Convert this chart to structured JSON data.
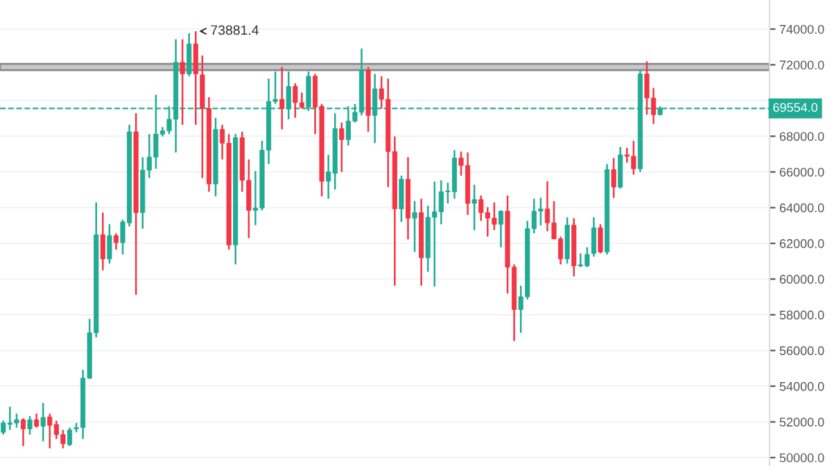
{
  "chart_data": {
    "type": "candlestick",
    "categories": [
      null,
      null,
      null,
      null,
      null,
      null,
      null,
      null,
      null,
      null,
      null,
      null,
      null,
      null,
      null,
      null,
      null,
      null,
      null,
      null,
      null,
      null,
      null,
      null,
      null,
      null,
      null,
      null,
      null,
      null,
      null,
      null,
      null,
      null,
      null,
      null,
      null,
      null,
      null,
      null,
      null,
      null,
      null,
      null,
      null,
      null,
      null,
      null,
      null,
      null,
      null,
      null,
      null,
      null,
      null,
      null,
      null,
      null,
      null,
      null,
      null,
      null,
      null,
      null,
      null,
      null,
      null,
      null,
      null,
      null,
      null,
      null,
      null,
      null,
      null,
      null,
      null,
      null,
      null,
      null,
      null,
      null,
      null,
      null,
      null,
      null,
      null,
      null,
      null,
      null,
      null,
      null,
      null,
      null,
      null,
      null,
      null,
      null,
      null,
      null,
      null,
      null,
      null,
      null,
      null,
      null,
      null,
      null,
      null,
      null,
      null,
      null,
      null,
      null,
      null,
      null
    ],
    "ohlc": [
      [
        51420,
        52070,
        51290,
        51940
      ],
      [
        51860,
        52850,
        51550,
        51940
      ],
      [
        51940,
        52460,
        51680,
        52120
      ],
      [
        52120,
        52200,
        50650,
        51610
      ],
      [
        51610,
        52330,
        51290,
        52120
      ],
      [
        52120,
        52460,
        51680,
        51760
      ],
      [
        51760,
        53060,
        50910,
        52250
      ],
      [
        52280,
        52460,
        50520,
        51810
      ],
      [
        51860,
        52070,
        51040,
        51290
      ],
      [
        51290,
        51550,
        50520,
        50780
      ],
      [
        50730,
        51680,
        50650,
        51550
      ],
      [
        51610,
        51940,
        51420,
        51680
      ],
      [
        51680,
        54920,
        51040,
        54450
      ],
      [
        54450,
        57770,
        54400,
        56990
      ],
      [
        56990,
        64290,
        56730,
        62480
      ],
      [
        62480,
        63720,
        60490,
        61130
      ],
      [
        61130,
        63070,
        60870,
        62430
      ],
      [
        62430,
        62560,
        61650,
        62040
      ],
      [
        62040,
        63330,
        61380,
        63200
      ],
      [
        63150,
        68640,
        62950,
        68250
      ],
      [
        68250,
        69290,
        59110,
        63720
      ],
      [
        63720,
        66830,
        62820,
        66100
      ],
      [
        66100,
        68120,
        65660,
        66830
      ],
      [
        66830,
        70320,
        66180,
        68120
      ],
      [
        68120,
        68510,
        67990,
        68300
      ],
      [
        68300,
        69680,
        68120,
        68950
      ],
      [
        68950,
        73430,
        67090,
        72140
      ],
      [
        72140,
        73430,
        68640,
        71490
      ],
      [
        71490,
        73770,
        71360,
        73170
      ],
      [
        73170,
        73881.4,
        68640,
        71490
      ],
      [
        71440,
        72520,
        65660,
        69550
      ],
      [
        69550,
        70190,
        64890,
        65330
      ],
      [
        65330,
        69030,
        64630,
        68380
      ],
      [
        68380,
        68640,
        66700,
        67610
      ],
      [
        67610,
        68120,
        61650,
        61910
      ],
      [
        61910,
        68120,
        60820,
        67920
      ],
      [
        67920,
        68250,
        64890,
        65530
      ],
      [
        65530,
        66700,
        62300,
        63850
      ],
      [
        63850,
        66050,
        63020,
        63980
      ],
      [
        63980,
        67740,
        63850,
        67220
      ],
      [
        67220,
        71230,
        66440,
        69940
      ],
      [
        69940,
        71620,
        69810,
        70070
      ],
      [
        70070,
        71880,
        68380,
        69550
      ],
      [
        69550,
        71620,
        68950,
        70790
      ],
      [
        70790,
        70970,
        69030,
        69880
      ],
      [
        69880,
        70450,
        69550,
        69630
      ],
      [
        69630,
        71620,
        69420,
        71360
      ],
      [
        71360,
        71490,
        68120,
        69630
      ],
      [
        69680,
        69810,
        64630,
        65480
      ],
      [
        65480,
        66960,
        64500,
        66000
      ],
      [
        65920,
        69290,
        65020,
        68430
      ],
      [
        68430,
        68770,
        66000,
        67810
      ],
      [
        67810,
        69680,
        67480,
        68850
      ],
      [
        68850,
        69810,
        68770,
        69340
      ],
      [
        69340,
        72910,
        69160,
        71700
      ],
      [
        71700,
        71880,
        68250,
        69160
      ],
      [
        69160,
        71490,
        67610,
        70660
      ],
      [
        70660,
        71360,
        69550,
        70070
      ],
      [
        70070,
        71230,
        65150,
        67140
      ],
      [
        67140,
        67990,
        59630,
        63930
      ],
      [
        63930,
        65790,
        63200,
        65590
      ],
      [
        65590,
        66830,
        62220,
        63410
      ],
      [
        63410,
        64370,
        61520,
        63720
      ],
      [
        63720,
        64500,
        59630,
        61190
      ],
      [
        61190,
        64110,
        60410,
        63460
      ],
      [
        63460,
        65460,
        59580,
        63770
      ],
      [
        63770,
        65530,
        63070,
        64890
      ],
      [
        64890,
        65400,
        64240,
        64940
      ],
      [
        64890,
        67220,
        64500,
        66780
      ],
      [
        66780,
        67140,
        65790,
        66360
      ],
      [
        66360,
        67090,
        63590,
        64240
      ],
      [
        64240,
        65280,
        62740,
        64450
      ],
      [
        64450,
        64680,
        63260,
        63720
      ],
      [
        63720,
        64030,
        62380,
        63410
      ],
      [
        63410,
        64290,
        62740,
        63070
      ],
      [
        63070,
        63850,
        61780,
        63800
      ],
      [
        63800,
        64680,
        59190,
        60670
      ],
      [
        60670,
        60820,
        56530,
        58290
      ],
      [
        58290,
        59630,
        56990,
        59010
      ],
      [
        59010,
        63260,
        58860,
        62820
      ],
      [
        62820,
        64500,
        62560,
        63800
      ],
      [
        63800,
        64550,
        63000,
        63930
      ],
      [
        63930,
        65480,
        62680,
        63150
      ],
      [
        63150,
        64370,
        62220,
        62250
      ],
      [
        62250,
        62380,
        60820,
        61130
      ],
      [
        61130,
        63460,
        60870,
        63020
      ],
      [
        63020,
        63410,
        60150,
        60740
      ],
      [
        60740,
        61440,
        60670,
        60800
      ],
      [
        60740,
        61780,
        60670,
        61380
      ],
      [
        61440,
        63460,
        61260,
        62870
      ],
      [
        62870,
        63070,
        61440,
        61520
      ],
      [
        61520,
        66440,
        61380,
        66130
      ],
      [
        66130,
        66780,
        64550,
        65150
      ],
      [
        65150,
        67400,
        65070,
        66960
      ],
      [
        66960,
        67350,
        66520,
        66880
      ],
      [
        66880,
        67740,
        65850,
        66180
      ],
      [
        66180,
        71700,
        66000,
        71490
      ],
      [
        71490,
        72190,
        69210,
        70140
      ],
      [
        70140,
        70710,
        68690,
        69210
      ],
      [
        69210,
        69680,
        69160,
        69554
      ],
      null,
      null,
      null,
      null,
      null,
      null,
      null,
      null,
      null,
      null,
      null,
      null,
      null,
      null,
      null,
      null
    ],
    "colors": [
      "#22ab94",
      "#22ab94",
      "#22ab94",
      "#f23645",
      "#22ab94",
      "#f23645",
      "#22ab94",
      "#f23645",
      "#f23645",
      "#f23645",
      "#22ab94",
      "#22ab94",
      "#22ab94",
      "#22ab94",
      "#22ab94",
      "#f23645",
      "#22ab94",
      "#f23645",
      "#22ab94",
      "#22ab94",
      "#f23645",
      "#22ab94",
      "#22ab94",
      "#22ab94",
      "#22ab94",
      "#22ab94",
      "#22ab94",
      "#f23645",
      "#22ab94",
      "#f23645",
      "#f23645",
      "#f23645",
      "#22ab94",
      "#f23645",
      "#f23645",
      "#22ab94",
      "#f23645",
      "#f23645",
      "#22ab94",
      "#22ab94",
      "#22ab94",
      "#22ab94",
      "#f23645",
      "#22ab94",
      "#f23645",
      "#f23645",
      "#22ab94",
      "#f23645",
      "#f23645",
      "#22ab94",
      "#22ab94",
      "#f23645",
      "#22ab94",
      "#22ab94",
      "#22ab94",
      "#f23645",
      "#22ab94",
      "#f23645",
      "#f23645",
      "#f23645",
      "#22ab94",
      "#f23645",
      "#22ab94",
      "#f23645",
      "#22ab94",
      "#22ab94",
      "#22ab94",
      "#22ab94",
      "#22ab94",
      "#f23645",
      "#f23645",
      "#22ab94",
      "#f23645",
      "#f23645",
      "#f23645",
      "#22ab94",
      "#f23645",
      "#f23645",
      "#22ab94",
      "#22ab94",
      "#22ab94",
      "#22ab94",
      "#f23645",
      "#f23645",
      "#f23645",
      "#22ab94",
      "#f23645",
      "#22ab94",
      "#22ab94",
      "#22ab94",
      "#f23645",
      "#22ab94",
      "#f23645",
      "#22ab94",
      "#f23645",
      "#f23645",
      "#22ab94",
      "#f23645",
      "#f23645",
      "#22ab94",
      null,
      null,
      null,
      null,
      null,
      null,
      null,
      null,
      null,
      null,
      null,
      null,
      null,
      null,
      null,
      null
    ],
    "ylim": [
      49530,
      75630
    ],
    "yticks": [
      {
        "value": 50000,
        "label": "50000.0"
      },
      {
        "value": 52000,
        "label": "52000.0"
      },
      {
        "value": 54000,
        "label": "54000.0"
      },
      {
        "value": 56000,
        "label": "56000.0"
      },
      {
        "value": 58000,
        "label": "58000.0"
      },
      {
        "value": 60000,
        "label": "60000.0"
      },
      {
        "value": 62000,
        "label": "62000.0"
      },
      {
        "value": 64000,
        "label": "64000.0"
      },
      {
        "value": 66000,
        "label": "66000.0"
      },
      {
        "value": 68000,
        "label": "68000.0"
      },
      {
        "value": 70000,
        "label": null
      },
      {
        "value": 72000,
        "label": "72000.0"
      },
      {
        "value": 74000,
        "label": "74000.0"
      }
    ],
    "grid": "y",
    "tick_labels": "y",
    "ref_lines": [
      {
        "axis": "y",
        "value": 69554,
        "label": "69554.0",
        "color": "#22ab94",
        "line_style": "dashed"
      }
    ],
    "bands": [
      {
        "axis": "y",
        "from": 71700,
        "to": 72050,
        "color": "#c8c8c8"
      }
    ],
    "annotations": [
      "73881.4"
    ]
  }
}
